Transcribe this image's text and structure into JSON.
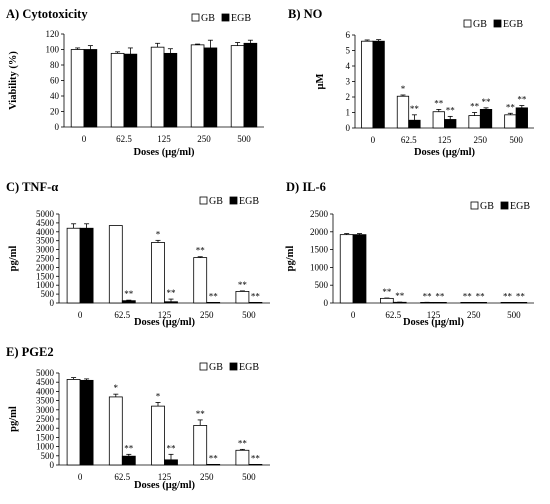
{
  "chart_data": [
    {
      "type": "bar",
      "title": "A) Cytotoxicity",
      "xlabel": "Doses (μg/ml)",
      "ylabel": "Viability (%)",
      "categories": [
        "0",
        "62.5",
        "125",
        "250",
        "500"
      ],
      "ylim": [
        0,
        120
      ],
      "yticks": [
        0,
        20,
        40,
        60,
        80,
        100,
        120
      ],
      "legend_position": "top-right",
      "series": [
        {
          "name": "GB",
          "color": "#ffffff",
          "values": [
            100,
            95,
            103,
            106,
            105
          ],
          "errors": [
            2,
            2,
            5,
            1,
            4
          ],
          "significance": [
            "",
            "",
            "",
            "",
            ""
          ]
        },
        {
          "name": "EGB",
          "color": "#000000",
          "values": [
            100,
            94,
            95,
            102,
            108
          ],
          "errors": [
            5,
            8,
            6,
            10,
            4
          ],
          "significance": [
            "",
            "",
            "",
            "",
            ""
          ]
        }
      ]
    },
    {
      "type": "bar",
      "title": "B) NO",
      "xlabel": "Doses (μg/ml)",
      "ylabel": "μM",
      "categories": [
        "0",
        "62.5",
        "125",
        "250",
        "500"
      ],
      "ylim": [
        0,
        6
      ],
      "yticks": [
        0,
        1,
        2,
        3,
        4,
        5,
        6
      ],
      "legend_position": "top-right",
      "series": [
        {
          "name": "GB",
          "color": "#ffffff",
          "values": [
            5.6,
            2.05,
            1.05,
            0.8,
            0.85
          ],
          "errors": [
            0.08,
            0.08,
            0.15,
            0.2,
            0.1
          ],
          "significance": [
            "",
            "*",
            "**",
            "**",
            "**"
          ]
        },
        {
          "name": "EGB",
          "color": "#000000",
          "values": [
            5.6,
            0.5,
            0.55,
            1.2,
            1.3
          ],
          "errors": [
            0.1,
            0.35,
            0.2,
            0.1,
            0.15
          ],
          "significance": [
            "",
            "**",
            "**",
            "**",
            "**"
          ]
        }
      ]
    },
    {
      "type": "bar",
      "title": "C) TNF-α",
      "xlabel": "Doses (μg/ml)",
      "ylabel": "pg/ml",
      "categories": [
        "0",
        "62.5",
        "125",
        "250",
        "500"
      ],
      "ylim": [
        0,
        5000
      ],
      "yticks": [
        0,
        500,
        1000,
        1500,
        2000,
        2500,
        3000,
        3500,
        4000,
        4500,
        5000
      ],
      "legend_position": "top-right",
      "series": [
        {
          "name": "GB",
          "color": "#ffffff",
          "values": [
            4200,
            4350,
            3400,
            2550,
            650
          ],
          "errors": [
            250,
            0,
            120,
            50,
            30
          ],
          "significance": [
            "",
            "",
            "*",
            "**",
            "**"
          ]
        },
        {
          "name": "EGB",
          "color": "#000000",
          "values": [
            4200,
            130,
            70,
            20,
            10
          ],
          "errors": [
            250,
            30,
            150,
            10,
            5
          ],
          "significance": [
            "",
            "**",
            "**",
            "**",
            "**"
          ]
        }
      ]
    },
    {
      "type": "bar",
      "title": "D) IL-6",
      "xlabel": "Doses (μg/ml)",
      "ylabel": "pg/ml",
      "categories": [
        "0",
        "62.5",
        "125",
        "250",
        "500"
      ],
      "ylim": [
        0,
        2500
      ],
      "yticks": [
        0,
        500,
        1000,
        1500,
        2000,
        2500
      ],
      "legend_position": "top-right",
      "series": [
        {
          "name": "GB",
          "color": "#ffffff",
          "values": [
            1920,
            130,
            15,
            10,
            10
          ],
          "errors": [
            30,
            10,
            5,
            5,
            5
          ],
          "significance": [
            "",
            "**",
            "**",
            "**",
            "**"
          ]
        },
        {
          "name": "EGB",
          "color": "#000000",
          "values": [
            1920,
            20,
            10,
            10,
            10
          ],
          "errors": [
            30,
            5,
            5,
            5,
            5
          ],
          "significance": [
            "",
            "**",
            "**",
            "**",
            "**"
          ]
        }
      ]
    },
    {
      "type": "bar",
      "title": "E) PGE2",
      "xlabel": "Doses (μg/ml)",
      "ylabel": "pg/ml",
      "categories": [
        "0",
        "62.5",
        "125",
        "250",
        "500"
      ],
      "ylim": [
        0,
        5000
      ],
      "yticks": [
        0,
        500,
        1000,
        1500,
        2000,
        2500,
        3000,
        3500,
        4000,
        4500,
        5000
      ],
      "legend_position": "top-right",
      "series": [
        {
          "name": "GB",
          "color": "#ffffff",
          "values": [
            4650,
            3700,
            3200,
            2150,
            800
          ],
          "errors": [
            100,
            150,
            200,
            300,
            50
          ],
          "significance": [
            "",
            "*",
            "*",
            "**",
            "**"
          ]
        },
        {
          "name": "EGB",
          "color": "#000000",
          "values": [
            4600,
            480,
            280,
            10,
            10
          ],
          "errors": [
            80,
            100,
            300,
            10,
            5
          ],
          "significance": [
            "",
            "**",
            "**",
            "**",
            "**"
          ]
        }
      ]
    }
  ]
}
